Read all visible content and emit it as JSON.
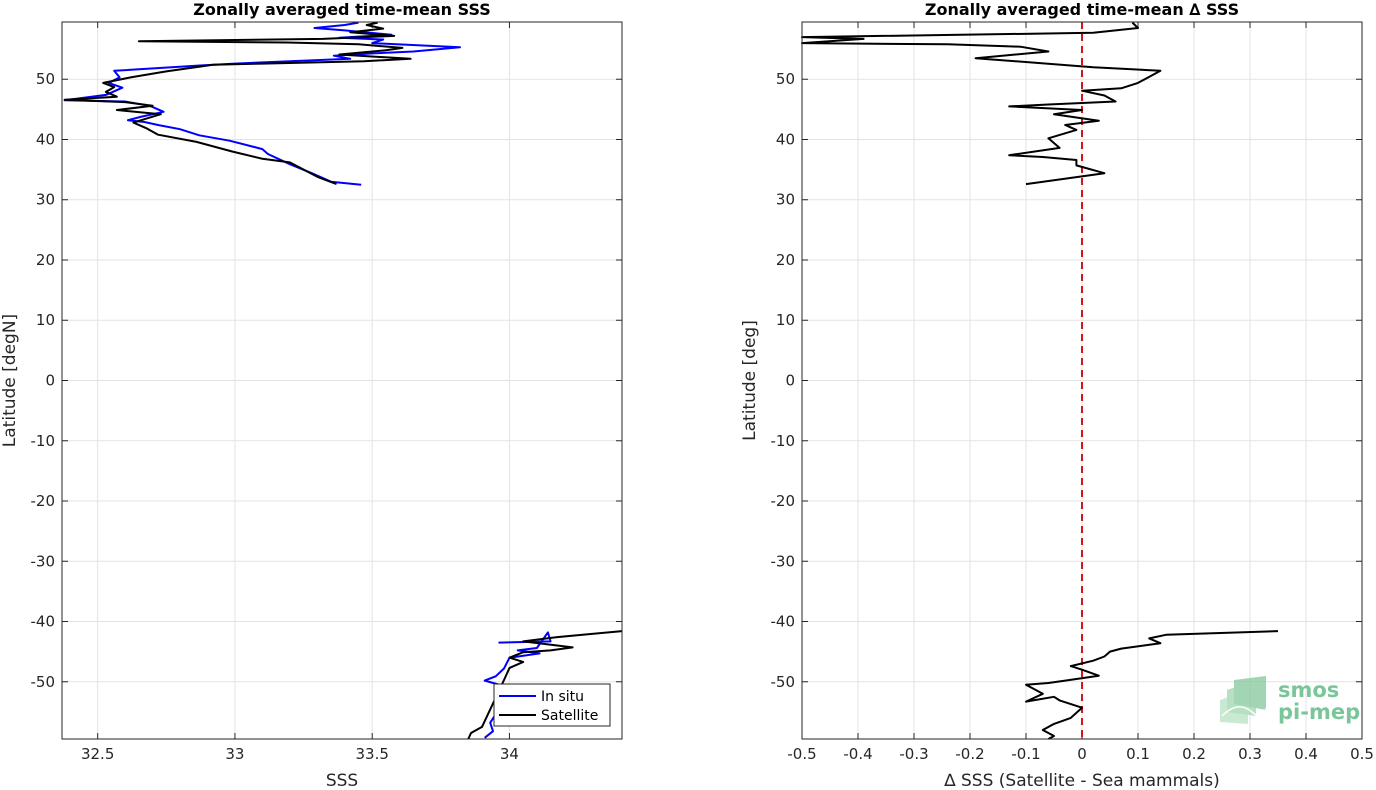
{
  "chart_data": [
    {
      "type": "line",
      "title": "Zonally averaged time-mean SSS",
      "xlabel": "SSS",
      "ylabel": "Latitude [degN]",
      "xlim": [
        32.37,
        34.41
      ],
      "ylim": [
        -59.5,
        59.5
      ],
      "x_ticks": [
        "32.5",
        "33",
        "33.5",
        "34"
      ],
      "x_tick_values": [
        32.5,
        33,
        33.5,
        34
      ],
      "y_ticks": [
        "50",
        "40",
        "30",
        "20",
        "10",
        "0",
        "-10",
        "-20",
        "-30",
        "-40",
        "-50"
      ],
      "y_tick_values": [
        50,
        40,
        30,
        20,
        10,
        0,
        -10,
        -20,
        -30,
        -40,
        -50
      ],
      "grid": true,
      "legend": {
        "placement": "bottom-right",
        "entries": [
          "In situ",
          "Satellite"
        ]
      },
      "series": [
        {
          "name": "In situ",
          "color": "#0000ff",
          "segments": [
            [
              [
                33.46,
                32.5
              ],
              [
                33.35,
                33.0
              ],
              [
                33.28,
                34.4
              ],
              [
                33.2,
                35.9
              ],
              [
                33.12,
                37.6
              ],
              [
                33.1,
                38.4
              ],
              [
                32.98,
                39.8
              ],
              [
                32.87,
                40.7
              ],
              [
                32.8,
                41.7
              ],
              [
                32.72,
                42.4
              ],
              [
                32.67,
                42.9
              ],
              [
                32.61,
                43.2
              ],
              [
                32.66,
                43.8
              ],
              [
                32.74,
                44.6
              ],
              [
                32.69,
                45.6
              ],
              [
                32.6,
                46.3
              ],
              [
                32.38,
                46.5
              ],
              [
                32.53,
                47.4
              ],
              [
                32.59,
                48.6
              ],
              [
                32.54,
                49.4
              ],
              [
                32.58,
                50.3
              ],
              [
                32.56,
                51.4
              ],
              [
                32.88,
                52.3
              ],
              [
                33.0,
                52.6
              ],
              [
                33.2,
                53.0
              ],
              [
                33.42,
                53.4
              ],
              [
                33.36,
                53.9
              ],
              [
                33.51,
                54.3
              ],
              [
                33.65,
                54.6
              ],
              [
                33.82,
                55.3
              ],
              [
                33.5,
                56.0
              ],
              [
                33.54,
                56.6
              ],
              [
                33.38,
                56.9
              ],
              [
                33.57,
                57.4
              ],
              [
                33.4,
                58.1
              ],
              [
                33.29,
                58.5
              ],
              [
                33.4,
                59.0
              ],
              [
                33.45,
                59.4
              ]
            ],
            [
              [
                33.96,
                -43.5
              ],
              [
                34.15,
                -43.3
              ],
              [
                34.14,
                -41.8
              ],
              [
                34.1,
                -44.4
              ],
              [
                34.03,
                -44.8
              ],
              [
                34.11,
                -45.3
              ],
              [
                34.0,
                -46.0
              ],
              [
                33.98,
                -47.8
              ],
              [
                33.95,
                -49.1
              ],
              [
                33.91,
                -49.8
              ],
              [
                33.98,
                -50.7
              ],
              [
                33.97,
                -54.0
              ],
              [
                33.93,
                -56.8
              ],
              [
                33.94,
                -58.2
              ],
              [
                33.91,
                -59.3
              ]
            ]
          ]
        },
        {
          "name": "Satellite",
          "color": "#000000",
          "segments": [
            [
              [
                33.37,
                32.6
              ],
              [
                33.3,
                33.8
              ],
              [
                33.2,
                36.2
              ],
              [
                33.1,
                36.8
              ],
              [
                32.99,
                38.0
              ],
              [
                32.86,
                39.6
              ],
              [
                32.72,
                40.8
              ],
              [
                32.68,
                41.8
              ],
              [
                32.63,
                42.8
              ],
              [
                32.73,
                44.2
              ],
              [
                32.57,
                44.9
              ],
              [
                32.7,
                45.6
              ],
              [
                32.6,
                46.2
              ],
              [
                32.38,
                46.6
              ],
              [
                32.57,
                47.1
              ],
              [
                32.53,
                47.9
              ],
              [
                32.56,
                48.7
              ],
              [
                32.52,
                49.4
              ],
              [
                32.62,
                50.3
              ],
              [
                32.75,
                51.3
              ],
              [
                32.92,
                52.4
              ],
              [
                33.1,
                52.6
              ],
              [
                33.47,
                53.0
              ],
              [
                33.64,
                53.4
              ],
              [
                33.38,
                54.1
              ],
              [
                33.55,
                54.8
              ],
              [
                33.61,
                55.2
              ],
              [
                33.45,
                55.8
              ],
              [
                33.19,
                56.1
              ],
              [
                32.65,
                56.3
              ],
              [
                33.32,
                56.7
              ],
              [
                33.58,
                57.2
              ],
              [
                33.42,
                57.8
              ],
              [
                33.54,
                58.4
              ],
              [
                33.48,
                59.0
              ],
              [
                33.52,
                59.4
              ]
            ],
            [
              [
                34.41,
                -41.6
              ],
              [
                34.17,
                -42.6
              ],
              [
                34.05,
                -43.3
              ],
              [
                34.14,
                -43.8
              ],
              [
                34.23,
                -44.3
              ],
              [
                34.15,
                -44.8
              ],
              [
                34.05,
                -45.1
              ],
              [
                34.0,
                -46.0
              ],
              [
                34.05,
                -46.7
              ],
              [
                34.0,
                -47.7
              ],
              [
                33.98,
                -49.7
              ],
              [
                33.9,
                -57.5
              ],
              [
                33.86,
                -58.5
              ],
              [
                33.85,
                -59.5
              ]
            ]
          ]
        }
      ]
    },
    {
      "type": "line",
      "title": "Zonally averaged time-mean ∆ SSS",
      "xlabel": "∆ SSS (Satellite - Sea mammals)",
      "ylabel": "Latitude [deg]",
      "xlim": [
        -0.5,
        0.5
      ],
      "ylim": [
        -59.5,
        59.5
      ],
      "x_ticks": [
        "-0.5",
        "-0.4",
        "-0.3",
        "-0.2",
        "-0.1",
        "0",
        "0.1",
        "0.2",
        "0.3",
        "0.4",
        "0.5"
      ],
      "x_tick_values": [
        -0.5,
        -0.4,
        -0.3,
        -0.2,
        -0.1,
        0,
        0.1,
        0.2,
        0.3,
        0.4,
        0.5
      ],
      "y_ticks": [
        "50",
        "40",
        "30",
        "20",
        "10",
        "0",
        "-10",
        "-20",
        "-30",
        "-40",
        "-50"
      ],
      "y_tick_values": [
        50,
        40,
        30,
        20,
        10,
        0,
        -10,
        -20,
        -30,
        -40,
        -50
      ],
      "grid": true,
      "reference_line": {
        "x": 0,
        "color": "#d11717",
        "style": "dashed"
      },
      "series": [
        {
          "name": "",
          "color": "#000000",
          "segments": [
            [
              [
                -0.1,
                32.6
              ],
              [
                0.04,
                34.4
              ],
              [
                -0.01,
                35.7
              ],
              [
                -0.01,
                36.6
              ],
              [
                -0.07,
                37.1
              ],
              [
                -0.13,
                37.4
              ],
              [
                -0.04,
                38.6
              ],
              [
                -0.06,
                40.2
              ],
              [
                -0.01,
                41.6
              ],
              [
                -0.03,
                42.4
              ],
              [
                0.03,
                43.1
              ],
              [
                -0.05,
                44.2
              ],
              [
                0.0,
                44.9
              ],
              [
                -0.13,
                45.5
              ],
              [
                -0.06,
                45.8
              ],
              [
                0.06,
                46.3
              ],
              [
                0.04,
                47.3
              ],
              [
                0.0,
                48.1
              ],
              [
                0.07,
                48.5
              ],
              [
                0.1,
                49.4
              ],
              [
                0.14,
                51.4
              ],
              [
                0.02,
                52.0
              ],
              [
                -0.19,
                53.5
              ],
              [
                -0.06,
                54.6
              ],
              [
                -0.11,
                55.4
              ],
              [
                -0.24,
                55.8
              ],
              [
                -0.5,
                56.0
              ],
              [
                -0.39,
                56.7
              ],
              [
                -0.5,
                57.0
              ],
              [
                0.02,
                57.7
              ],
              [
                0.1,
                58.5
              ],
              [
                0.09,
                59.4
              ]
            ],
            [
              [
                0.35,
                -41.6
              ],
              [
                0.15,
                -42.2
              ],
              [
                0.12,
                -42.8
              ],
              [
                0.14,
                -43.6
              ],
              [
                0.07,
                -44.5
              ],
              [
                0.05,
                -45.0
              ],
              [
                0.04,
                -45.8
              ],
              [
                0.02,
                -46.5
              ],
              [
                -0.02,
                -47.4
              ],
              [
                0.0,
                -48.0
              ],
              [
                0.03,
                -49.0
              ],
              [
                -0.03,
                -49.8
              ],
              [
                -0.06,
                -50.2
              ],
              [
                -0.1,
                -50.5
              ],
              [
                -0.07,
                -52.0
              ],
              [
                -0.1,
                -53.3
              ],
              [
                -0.05,
                -52.5
              ],
              [
                -0.04,
                -53.1
              ],
              [
                0.0,
                -54.3
              ],
              [
                -0.02,
                -56.0
              ],
              [
                -0.05,
                -57.0
              ],
              [
                -0.07,
                -58.0
              ],
              [
                -0.05,
                -59.0
              ],
              [
                -0.06,
                -59.5
              ]
            ]
          ]
        }
      ]
    }
  ],
  "watermark": {
    "line1": "smos",
    "line2": "pi-mep"
  }
}
